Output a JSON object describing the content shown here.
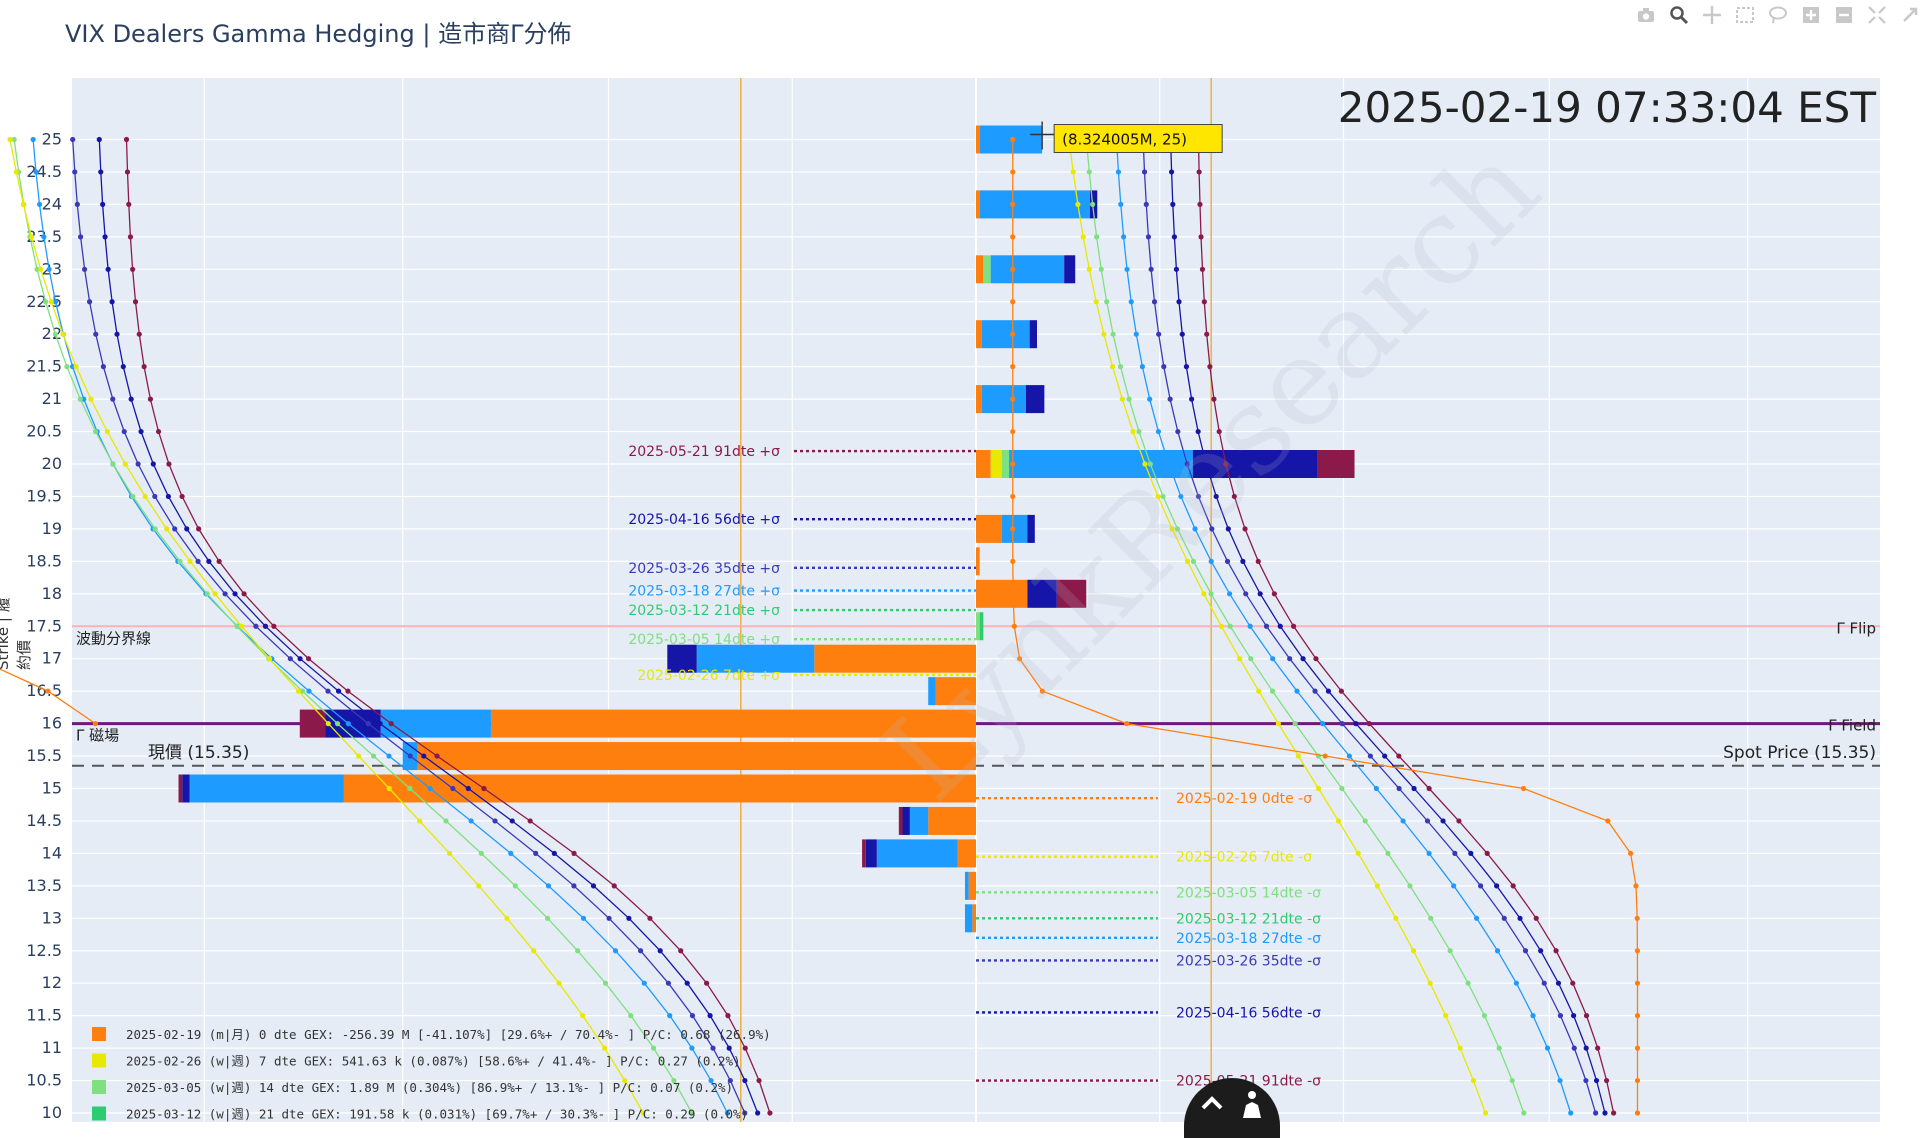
{
  "title": "VIX Dealers Gamma Hedging | 造市商Γ分佈",
  "timestamp": "2025-02-19 07:33:04 EST",
  "toolbar": {
    "icons": [
      "camera-icon",
      "zoom-icon",
      "pan-icon",
      "box-select-icon",
      "lasso-icon",
      "zoom-in-icon",
      "zoom-out-icon",
      "autoscale-icon",
      "reset-icon"
    ]
  },
  "colors": {
    "orange": "#ff7f0e",
    "yellow": "#e8e800",
    "lightgreen": "#7fe07f",
    "green": "#2ecc71",
    "skyblue": "#1e9bff",
    "blue": "#1515a8",
    "navy": "#3a3ab8",
    "maroon": "#8b1a4a",
    "gold": "#f0b040",
    "pink": "#ffb0b8",
    "purple": "#6a1b7a"
  },
  "chart_data": {
    "type": "bar",
    "orientation": "horizontal",
    "ylabel": "Strike | 履約價",
    "xlabel": "",
    "ylim": [
      10,
      25.5
    ],
    "y_ticks": [
      10,
      10.5,
      11,
      11.5,
      12,
      12.5,
      13,
      13.5,
      14,
      14.5,
      15,
      15.5,
      16,
      16.5,
      17,
      17.5,
      18,
      18.5,
      19,
      19.5,
      20,
      20.5,
      21,
      21.5,
      22,
      22.5,
      23,
      23.5,
      24,
      24.5,
      25
    ],
    "xlim": [
      -14.0,
      14.0
    ],
    "hover_label": "(8.324005M, 25)",
    "hover_point": {
      "x": 0.9,
      "y": 25
    },
    "reference_lines": [
      {
        "name": "Γ Flip",
        "left_label": "波動分界線",
        "right_label": "Γ Flip",
        "value": 17.5,
        "color": "#ffb0b8"
      },
      {
        "name": "Γ Field",
        "left_label": "Γ 磁場",
        "right_label": "Γ Field",
        "value": 16.0,
        "color": "#6a1b7a"
      },
      {
        "name": "Spot Price",
        "left_label": "現價 (15.35)",
        "right_label": "Spot Price (15.35)",
        "value": 15.35,
        "color": "#555555"
      }
    ],
    "vertical_lines": [
      -3.2,
      3.2
    ],
    "series": [
      {
        "name": "2025-02-19 0dte",
        "color": "#ff7f0e",
        "bars": [
          [
            25,
            0.05
          ],
          [
            24,
            0.05
          ],
          [
            23,
            0.1
          ],
          [
            22,
            0.08
          ],
          [
            21,
            0.08
          ],
          [
            20,
            0.2
          ],
          [
            19,
            0.35
          ],
          [
            18.5,
            0.05
          ],
          [
            18,
            0.7
          ],
          [
            17,
            -2.2
          ],
          [
            16.5,
            -0.55
          ],
          [
            16,
            -6.6
          ],
          [
            15.5,
            -7.6
          ],
          [
            15,
            -8.6
          ],
          [
            14.5,
            -0.65
          ],
          [
            14,
            -0.25
          ],
          [
            13.5,
            -0.1
          ],
          [
            13,
            -0.05
          ]
        ]
      },
      {
        "name": "2025-02-26 7dte",
        "color": "#e8e800",
        "bars": [
          [
            25,
            0
          ],
          [
            20,
            0.15
          ],
          [
            18,
            0
          ],
          [
            17,
            0
          ],
          [
            15,
            0
          ],
          [
            14,
            0
          ]
        ]
      },
      {
        "name": "2025-03-05 14dte",
        "color": "#7fe07f",
        "bars": [
          [
            23,
            0.1
          ],
          [
            20,
            0.1
          ],
          [
            17.5,
            0.05
          ]
        ]
      },
      {
        "name": "2025-03-12 21dte",
        "color": "#2ecc71",
        "bars": [
          [
            17.5,
            0.05
          ]
        ]
      },
      {
        "name": "2025-03-18 27dte",
        "color": "#1e9bff",
        "bars": [
          [
            25,
            0.85
          ],
          [
            24,
            1.5
          ],
          [
            23,
            1.0
          ],
          [
            22,
            0.65
          ],
          [
            21,
            0.6
          ],
          [
            20,
            2.5
          ],
          [
            19,
            0.35
          ],
          [
            17,
            -1.6
          ],
          [
            16.5,
            -0.1
          ],
          [
            16,
            -1.5
          ],
          [
            15.5,
            -0.2
          ],
          [
            15,
            -2.1
          ],
          [
            14.5,
            -0.25
          ],
          [
            14,
            -1.1
          ],
          [
            13.5,
            -0.05
          ],
          [
            13,
            -0.1
          ]
        ]
      },
      {
        "name": "2025-03-26 35dte",
        "color": "#1515a8",
        "bars": [
          [
            24,
            0.1
          ],
          [
            23,
            0.15
          ],
          [
            22,
            0.1
          ],
          [
            21,
            0.25
          ],
          [
            20,
            1.7
          ],
          [
            19,
            0.1
          ],
          [
            18,
            0.4
          ],
          [
            17,
            -0.4
          ],
          [
            16,
            -0.75
          ],
          [
            15,
            -0.1
          ],
          [
            14.5,
            -0.1
          ],
          [
            14,
            -0.15
          ]
        ]
      },
      {
        "name": "2025-05-21 91dte",
        "color": "#8b1a4a",
        "bars": [
          [
            20,
            0.5
          ],
          [
            18,
            0.4
          ],
          [
            16,
            -0.35
          ],
          [
            15,
            -0.05
          ],
          [
            14.5,
            -0.05
          ],
          [
            14,
            -0.05
          ]
        ]
      }
    ],
    "sigma_labels": [
      {
        "text": "2025-05-21 91dte +σ",
        "y": 20.2,
        "color": "#8b1a4a",
        "side": "left"
      },
      {
        "text": "2025-04-16 56dte +σ",
        "y": 19.15,
        "color": "#1515a8",
        "side": "left"
      },
      {
        "text": "2025-03-26 35dte +σ",
        "y": 18.4,
        "color": "#3a3ab8",
        "side": "left"
      },
      {
        "text": "2025-03-18 27dte +σ",
        "y": 18.05,
        "color": "#1e9bff",
        "side": "left"
      },
      {
        "text": "2025-03-12 21dte +σ",
        "y": 17.75,
        "color": "#2ecc71",
        "side": "left"
      },
      {
        "text": "2025-03-05 14dte +σ",
        "y": 17.3,
        "color": "#7fe07f",
        "side": "left"
      },
      {
        "text": "2025-02-26 7dte +σ",
        "y": 16.75,
        "color": "#e8e800",
        "side": "left"
      },
      {
        "text": "2025-02-19 0dte -σ",
        "y": 14.85,
        "color": "#ff7f0e",
        "side": "right"
      },
      {
        "text": "2025-02-26 7dte -σ",
        "y": 13.95,
        "color": "#e8e800",
        "side": "right"
      },
      {
        "text": "2025-03-05 14dte -σ",
        "y": 13.4,
        "color": "#7fe07f",
        "side": "right"
      },
      {
        "text": "2025-03-12 21dte -σ",
        "y": 13.0,
        "color": "#2ecc71",
        "side": "right"
      },
      {
        "text": "2025-03-18 27dte -σ",
        "y": 12.7,
        "color": "#1e9bff",
        "side": "right"
      },
      {
        "text": "2025-03-26 35dte -σ",
        "y": 12.35,
        "color": "#3a3ab8",
        "side": "right"
      },
      {
        "text": "2025-04-16 56dte -σ",
        "y": 11.55,
        "color": "#1515a8",
        "side": "right"
      },
      {
        "text": "2025-05-21 91dte -σ",
        "y": 10.5,
        "color": "#8b1a4a",
        "side": "right"
      }
    ],
    "legend": [
      {
        "date": "2025-02-19 (m|月)",
        "dte": "0 dte",
        "gex": "GEX: -256.39 M [-41.107%]",
        "pct": "[29.6%+ / 70.4%- ]",
        "pc": "P/C: 0.68  (26.9%)",
        "color": "#ff7f0e"
      },
      {
        "date": "2025-02-26 (w|週)",
        "dte": "7 dte",
        "gex": "GEX: 541.63 k (0.087%)",
        "pct": "[58.6%+ / 41.4%- ]",
        "pc": "P/C: 0.27  (0.2%)",
        "color": "#e8e800"
      },
      {
        "date": "2025-03-05 (w|週)",
        "dte": "14 dte",
        "gex": "GEX: 1.89 M (0.304%)",
        "pct": "[86.9%+ / 13.1%- ]",
        "pc": "P/C: 0.07  (0.2%)",
        "color": "#7fe07f"
      },
      {
        "date": "2025-03-12 (w|週)",
        "dte": "21 dte",
        "gex": "GEX: 191.58 k (0.031%)",
        "pct": "[69.7%+ / 30.3%- ]",
        "pc": "P/C: 0.29  (0.0%)",
        "color": "#2ecc71"
      }
    ]
  }
}
